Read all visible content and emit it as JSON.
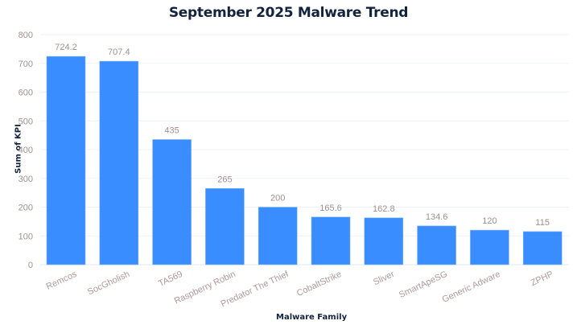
{
  "chart_data": {
    "type": "bar",
    "title": "September 2025 Malware Trend",
    "xlabel": "Malware Family",
    "ylabel": "Sum of KPI",
    "ylim": [
      0,
      800
    ],
    "yticks": [
      0,
      100,
      200,
      300,
      400,
      500,
      600,
      700,
      800
    ],
    "grid": true,
    "legend": null,
    "bar_color": "#3a8dff",
    "categories": [
      "Remcos",
      "SocGholish",
      "TA569",
      "Raspberry Robin",
      "Predator The Thief",
      "CobaltStrike",
      "Sliver",
      "SmartApeSG",
      "Generic Adware",
      "ZPHP"
    ],
    "values": [
      724.2,
      707.4,
      435,
      265,
      200,
      165.6,
      162.8,
      134.6,
      120,
      115
    ],
    "data_labels": [
      "724.2",
      "707.4",
      "435",
      "265",
      "200",
      "165.6",
      "162.8",
      "134.6",
      "120",
      "115"
    ]
  }
}
